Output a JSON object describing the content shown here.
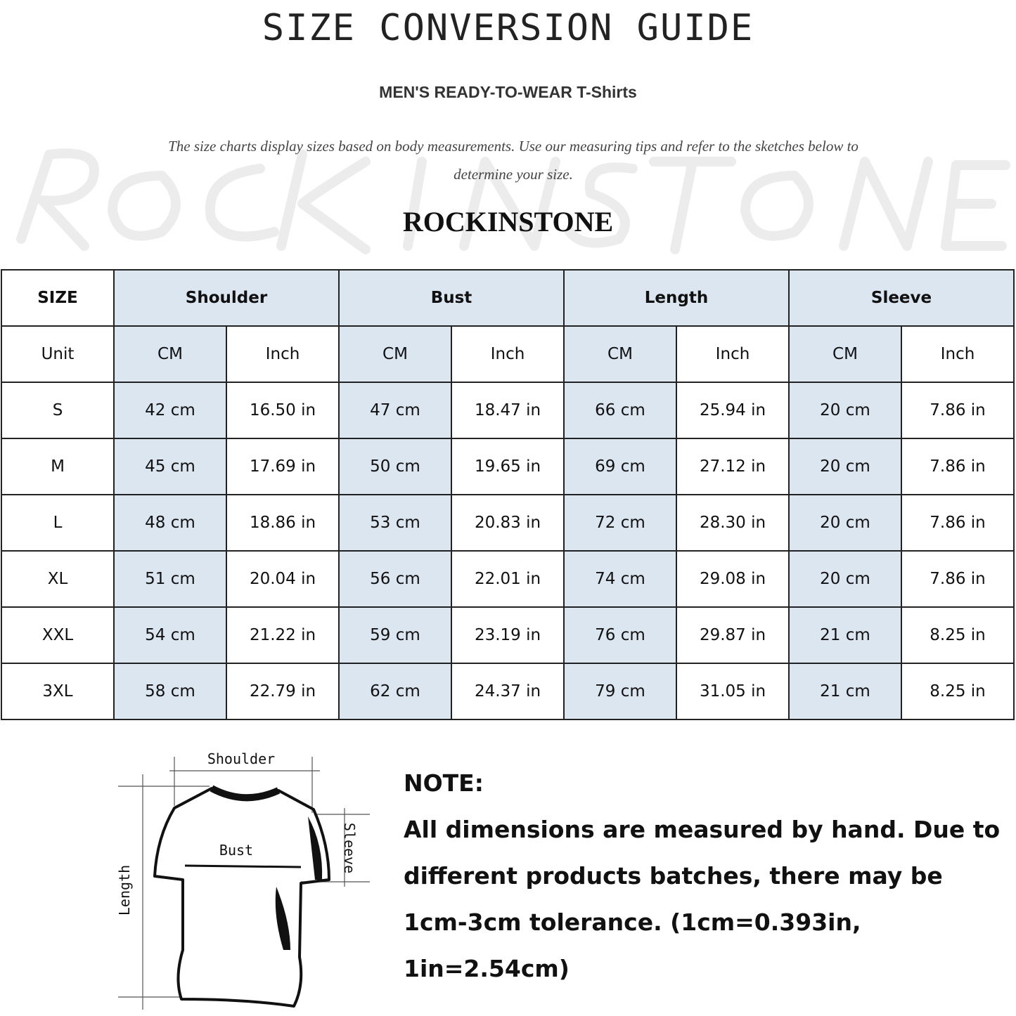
{
  "title": "SIZE CONVERSION GUIDE",
  "subtitle": "MEN'S READY-TO-WEAR T-Shirts",
  "description": "The size charts display sizes based on body measurements. Use our measuring tips and refer to the sketches below to determine your size.",
  "watermark": "ROCKINSTONE",
  "brand": "ROCKINSTONE",
  "table": {
    "header": [
      "SIZE",
      "Shoulder",
      "Bust",
      "Length",
      "Sleeve"
    ],
    "units": [
      "Unit",
      "CM",
      "Inch",
      "CM",
      "Inch",
      "CM",
      "Inch",
      "CM",
      "Inch"
    ],
    "rows": [
      [
        "S",
        "42 cm",
        "16.50 in",
        "47 cm",
        "18.47  in",
        "66 cm",
        "25.94  in",
        "20 cm",
        "7.86  in"
      ],
      [
        "M",
        "45 cm",
        "17.69  in",
        "50 cm",
        "19.65  in",
        "69 cm",
        "27.12  in",
        "20 cm",
        "7.86  in"
      ],
      [
        "L",
        "48 cm",
        "18.86  in",
        "53 cm",
        "20.83  in",
        "72 cm",
        "28.30  in",
        "20 cm",
        "7.86  in"
      ],
      [
        "XL",
        "51 cm",
        "20.04  in",
        "56 cm",
        "22.01  in",
        "74 cm",
        "29.08  in",
        "20 cm",
        "7.86  in"
      ],
      [
        "XXL",
        "54 cm",
        "21.22  in",
        "59 cm",
        "23.19  in",
        "76 cm",
        "29.87  in",
        "21 cm",
        "8.25  in"
      ],
      [
        "3XL",
        "58 cm",
        "22.79  in",
        "62 cm",
        "24.37  in",
        "79 cm",
        "31.05  in",
        "21 cm",
        "8.25  in"
      ]
    ],
    "highlight_color": "#dce6f1"
  },
  "diagram": {
    "shoulder": "Shoulder",
    "bust": "Bust",
    "length": "Length",
    "sleeve": "Sleeve"
  },
  "note": {
    "heading": "NOTE:",
    "line1": "All dimensions are measured by hand. Due to",
    "line2": "different products batches, there may be",
    "line3": "1cm-3cm tolerance. (1cm=0.393in, 1in=2.54cm)"
  }
}
